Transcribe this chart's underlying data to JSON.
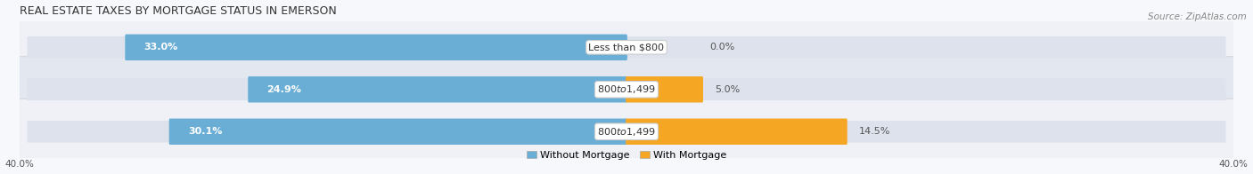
{
  "title": "Real Estate Taxes by Mortgage Status in Emerson",
  "source": "Source: ZipAtlas.com",
  "rows": [
    {
      "label": "Less than $800",
      "without_mortgage": 33.0,
      "with_mortgage": 0.0
    },
    {
      "label": "$800 to $1,499",
      "without_mortgage": 24.9,
      "with_mortgage": 5.0
    },
    {
      "label": "$800 to $1,499",
      "without_mortgage": 30.1,
      "with_mortgage": 14.5
    }
  ],
  "x_max": 40.0,
  "x_min": -40.0,
  "color_without": "#6aaed6",
  "color_without_light": "#a8cce4",
  "color_with": "#f5a623",
  "color_with_light": "#fad9a8",
  "bar_bg_color": "#dde2ed",
  "row_bg_odd": "#eff1f7",
  "row_bg_even": "#e3e7f0",
  "fig_bg": "#f7f8fc",
  "title_fontsize": 9,
  "source_fontsize": 7.5,
  "label_fontsize": 8,
  "value_fontsize": 8,
  "tick_fontsize": 7.5,
  "legend_fontsize": 8
}
